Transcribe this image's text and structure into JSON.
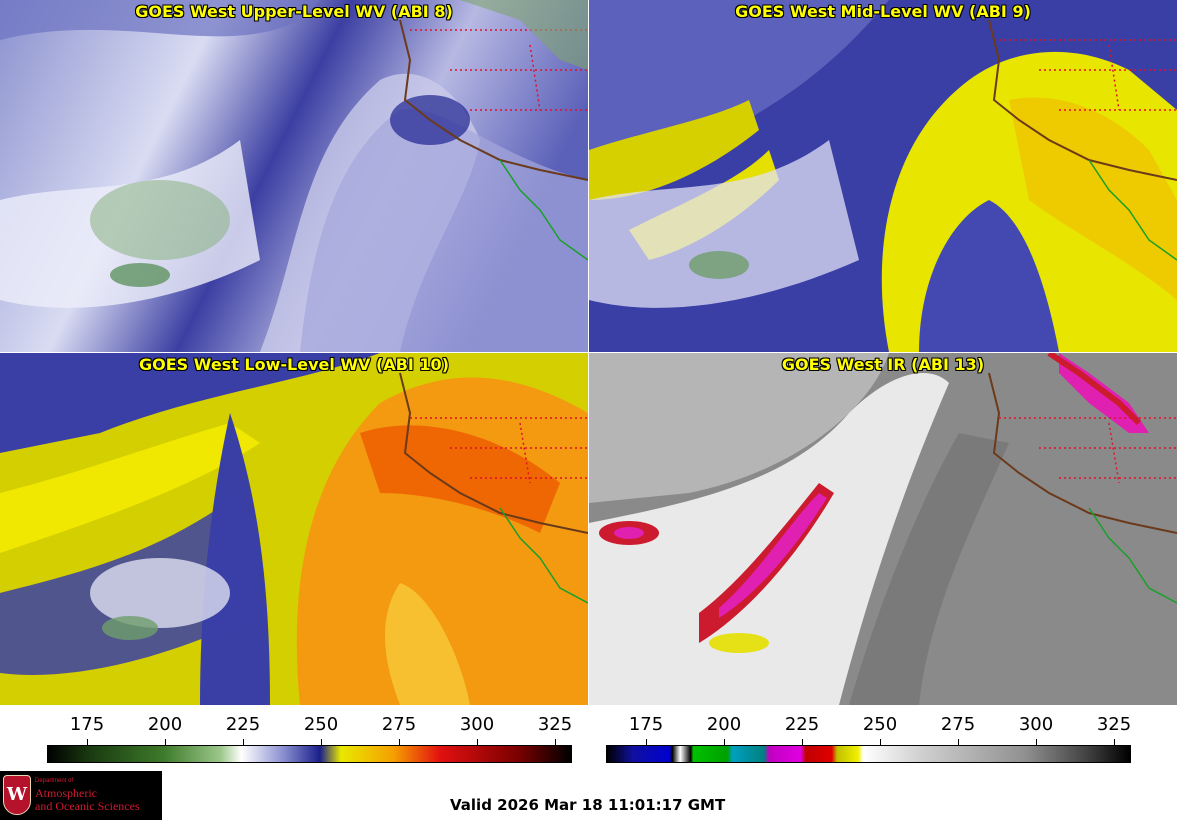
{
  "panels": [
    {
      "title": "GOES West Upper-Level WV (ABI 8)"
    },
    {
      "title": "GOES West Mid-Level WV (ABI 9)"
    },
    {
      "title": "GOES West Low-Level WV (ABI 10)"
    },
    {
      "title": "GOES West IR (ABI 13)"
    }
  ],
  "colorbars": [
    {
      "ticks": [
        "175",
        "200",
        "225",
        "250",
        "275",
        "300",
        "325"
      ]
    },
    {
      "ticks": [
        "175",
        "200",
        "225",
        "250",
        "275",
        "300",
        "325"
      ]
    }
  ],
  "valid_time": "Valid 2026 Mar 18 11:01:17 GMT",
  "logo": {
    "department": "Department of",
    "line1": "Atmospheric",
    "line2": "and Oceanic Sciences",
    "crest_letter": "W"
  },
  "colors": {
    "title_text": "#ffff00",
    "state_borders": "#e0102a",
    "coastline": "#6b3a1a",
    "mexico_outline": "#1aa02a"
  }
}
